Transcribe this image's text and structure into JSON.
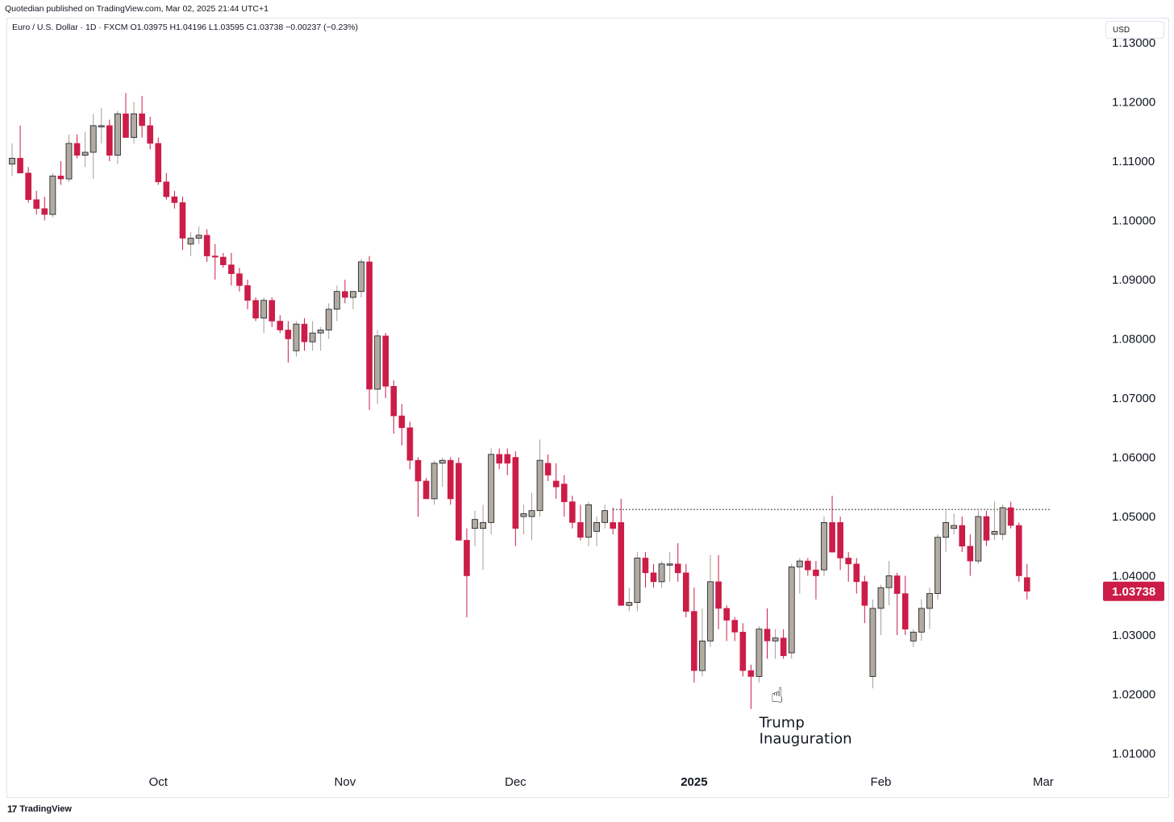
{
  "publisher_line": "Quotedian published on TradingView.com, Mar 02, 2025 21:44 UTC+1",
  "legend_line": "Euro / U.S. Dollar · 1D · FXCM  O1.03975  H1.04196  L1.03595  C1.03738  −0.00237 (−0.23%)",
  "currency_button": "USD",
  "footer_brand": "TradingView",
  "footer_logo": "17",
  "colors": {
    "up": "#b2aba0",
    "up_wick": "#a59e93",
    "down": "#cc1c48",
    "price_tag": "#cc1c48",
    "grid_line": "#e0e3eb"
  },
  "chart_data": {
    "type": "candlestick",
    "symbol": "Euro / U.S. Dollar",
    "timeframe": "1D",
    "source": "FXCM",
    "last_price": 1.03738,
    "last_price_label": "1.03738",
    "ylim": [
      1.0045,
      1.135
    ],
    "y_ticks": [
      1.13,
      1.12,
      1.11,
      1.1,
      1.09,
      1.08,
      1.07,
      1.06,
      1.05,
      1.04,
      1.03,
      1.02,
      1.01
    ],
    "y_tick_labels": [
      "1.13000",
      "1.12000",
      "1.11000",
      "1.10000",
      "1.09000",
      "1.08000",
      "1.07000",
      "1.06000",
      "1.05000",
      "1.04000",
      "1.03000",
      "1.02000",
      "1.01000"
    ],
    "x_labels": [
      {
        "label": "Oct",
        "index": 18,
        "bold": false
      },
      {
        "label": "Nov",
        "index": 41,
        "bold": false
      },
      {
        "label": "Dec",
        "index": 62,
        "bold": false
      },
      {
        "label": "2025",
        "index": 84,
        "bold": true
      },
      {
        "label": "Feb",
        "index": 107,
        "bold": false
      },
      {
        "label": "Mar",
        "index": 127,
        "bold": false
      }
    ],
    "resistance_level": 1.0512,
    "resistance_start_index": 74,
    "resistance_end_index": 128,
    "annotation": {
      "lines": [
        "Trump",
        "Inauguration"
      ],
      "index": 95,
      "price": 1.02
    },
    "candles": [
      [
        1.1095,
        1.113,
        1.1075,
        1.1105
      ],
      [
        1.1105,
        1.116,
        1.108,
        1.108
      ],
      [
        1.108,
        1.109,
        1.103,
        1.1035
      ],
      [
        1.1035,
        1.105,
        1.101,
        1.102
      ],
      [
        1.102,
        1.104,
        1.1,
        1.101
      ],
      [
        1.101,
        1.108,
        1.1005,
        1.1075
      ],
      [
        1.1075,
        1.11,
        1.106,
        1.107
      ],
      [
        1.107,
        1.1145,
        1.1065,
        1.113
      ],
      [
        1.113,
        1.1145,
        1.1105,
        1.111
      ],
      [
        1.111,
        1.115,
        1.109,
        1.1115
      ],
      [
        1.1115,
        1.118,
        1.107,
        1.116
      ],
      [
        1.116,
        1.119,
        1.113,
        1.116
      ],
      [
        1.116,
        1.117,
        1.11,
        1.111
      ],
      [
        1.111,
        1.1185,
        1.1095,
        1.118
      ],
      [
        1.118,
        1.1215,
        1.115,
        1.114
      ],
      [
        1.114,
        1.12,
        1.113,
        1.118
      ],
      [
        1.118,
        1.121,
        1.114,
        1.116
      ],
      [
        1.116,
        1.1175,
        1.112,
        1.113
      ],
      [
        1.113,
        1.114,
        1.106,
        1.1065
      ],
      [
        1.1065,
        1.108,
        1.1035,
        1.104
      ],
      [
        1.104,
        1.105,
        1.102,
        1.103
      ],
      [
        1.103,
        1.104,
        1.095,
        1.097
      ],
      [
        1.096,
        1.098,
        1.094,
        1.097
      ],
      [
        1.097,
        1.099,
        1.096,
        1.0975
      ],
      [
        1.0975,
        1.0985,
        1.093,
        1.094
      ],
      [
        1.094,
        1.096,
        1.09,
        1.0938
      ],
      [
        1.0938,
        1.0945,
        1.092,
        1.0925
      ],
      [
        1.0925,
        1.0945,
        1.089,
        1.091
      ],
      [
        1.091,
        1.092,
        1.088,
        1.089
      ],
      [
        1.089,
        1.09,
        1.085,
        1.0865
      ],
      [
        1.0865,
        1.087,
        1.083,
        1.0835
      ],
      [
        1.0835,
        1.087,
        1.081,
        1.0865
      ],
      [
        1.0865,
        1.087,
        1.082,
        1.083
      ],
      [
        1.083,
        1.084,
        1.081,
        1.0815
      ],
      [
        1.0815,
        1.083,
        1.076,
        1.08
      ],
      [
        1.078,
        1.083,
        1.077,
        1.0825
      ],
      [
        1.0825,
        1.0835,
        1.078,
        1.0795
      ],
      [
        1.0795,
        1.083,
        1.078,
        1.081
      ],
      [
        1.081,
        1.082,
        1.078,
        1.0815
      ],
      [
        1.0815,
        1.086,
        1.08,
        1.085
      ],
      [
        1.085,
        1.089,
        1.083,
        1.088
      ],
      [
        1.088,
        1.09,
        1.086,
        1.087
      ],
      [
        1.087,
        1.088,
        1.085,
        1.088
      ],
      [
        1.088,
        1.0935,
        1.087,
        1.093
      ],
      [
        1.093,
        1.094,
        1.068,
        1.0715
      ],
      [
        1.0715,
        1.0815,
        1.069,
        1.0805
      ],
      [
        1.0805,
        1.081,
        1.07,
        1.072
      ],
      [
        1.072,
        1.073,
        1.064,
        1.067
      ],
      [
        1.067,
        1.069,
        1.062,
        1.065
      ],
      [
        1.065,
        1.066,
        1.058,
        1.0595
      ],
      [
        1.0595,
        1.06,
        1.05,
        1.056
      ],
      [
        1.056,
        1.0565,
        1.053,
        1.053
      ],
      [
        1.053,
        1.0595,
        1.052,
        1.059
      ],
      [
        1.059,
        1.06,
        1.055,
        1.0595
      ],
      [
        1.0595,
        1.06,
        1.052,
        1.053
      ],
      [
        1.059,
        1.06,
        1.046,
        1.046
      ],
      [
        1.046,
        1.048,
        1.033,
        1.04
      ],
      [
        1.048,
        1.051,
        1.045,
        1.0495
      ],
      [
        1.048,
        1.052,
        1.041,
        1.049
      ],
      [
        1.049,
        1.0615,
        1.047,
        1.0605
      ],
      [
        1.0605,
        1.0615,
        1.058,
        1.059
      ],
      [
        1.0605,
        1.0615,
        1.057,
        1.059
      ],
      [
        1.06,
        1.061,
        1.045,
        1.048
      ],
      [
        1.05,
        1.052,
        1.047,
        1.0505
      ],
      [
        1.05,
        1.054,
        1.046,
        1.051
      ],
      [
        1.051,
        1.063,
        1.05,
        1.0595
      ],
      [
        1.059,
        1.0605,
        1.056,
        1.057
      ],
      [
        1.056,
        1.059,
        1.053,
        1.055
      ],
      [
        1.0555,
        1.057,
        1.05,
        1.0525
      ],
      [
        1.0525,
        1.0535,
        1.048,
        1.049
      ],
      [
        1.049,
        1.052,
        1.046,
        1.0465
      ],
      [
        1.0465,
        1.0525,
        1.045,
        1.052
      ],
      [
        1.0475,
        1.05,
        1.045,
        1.049
      ],
      [
        1.049,
        1.052,
        1.048,
        1.051
      ],
      [
        1.049,
        1.0515,
        1.047,
        1.048
      ],
      [
        1.049,
        1.053,
        1.035,
        1.035
      ],
      [
        1.035,
        1.038,
        1.034,
        1.0355
      ],
      [
        1.0355,
        1.044,
        1.034,
        1.043
      ],
      [
        1.043,
        1.044,
        1.038,
        1.0405
      ],
      [
        1.0405,
        1.042,
        1.038,
        1.039
      ],
      [
        1.039,
        1.0425,
        1.038,
        1.042
      ],
      [
        1.042,
        1.044,
        1.039,
        1.042
      ],
      [
        1.042,
        1.0455,
        1.039,
        1.0405
      ],
      [
        1.0405,
        1.042,
        1.033,
        1.034
      ],
      [
        1.034,
        1.038,
        1.022,
        1.024
      ],
      [
        1.024,
        1.0345,
        1.023,
        1.029
      ],
      [
        1.029,
        1.0435,
        1.028,
        1.039
      ],
      [
        1.039,
        1.0435,
        1.031,
        1.0345
      ],
      [
        1.0345,
        1.035,
        1.029,
        1.0325
      ],
      [
        1.0325,
        1.033,
        1.029,
        1.0305
      ],
      [
        1.0305,
        1.032,
        1.023,
        1.024
      ],
      [
        1.024,
        1.025,
        1.0175,
        1.023
      ],
      [
        1.023,
        1.0315,
        1.022,
        1.031
      ],
      [
        1.031,
        1.0345,
        1.026,
        1.029
      ],
      [
        1.029,
        1.031,
        1.026,
        1.0295
      ],
      [
        1.0295,
        1.031,
        1.026,
        1.0265
      ],
      [
        1.027,
        1.042,
        1.026,
        1.0415
      ],
      [
        1.0415,
        1.043,
        1.037,
        1.0425
      ],
      [
        1.0425,
        1.043,
        1.04,
        1.041
      ],
      [
        1.041,
        1.0425,
        1.036,
        1.04
      ],
      [
        1.041,
        1.05,
        1.04,
        1.049
      ],
      [
        1.049,
        1.0535,
        1.044,
        1.044
      ],
      [
        1.049,
        1.05,
        1.041,
        1.043
      ],
      [
        1.043,
        1.044,
        1.039,
        1.042
      ],
      [
        1.042,
        1.043,
        1.037,
        1.039
      ],
      [
        1.039,
        1.04,
        1.032,
        1.035
      ],
      [
        1.023,
        1.036,
        1.021,
        1.0345
      ],
      [
        1.0345,
        1.0385,
        1.03,
        1.038
      ],
      [
        1.038,
        1.0425,
        1.035,
        1.04
      ],
      [
        1.04,
        1.0405,
        1.03,
        1.037
      ],
      [
        1.037,
        1.04,
        1.03,
        1.031
      ],
      [
        1.029,
        1.031,
        1.028,
        1.0305
      ],
      [
        1.0305,
        1.036,
        1.029,
        1.0345
      ],
      [
        1.0345,
        1.038,
        1.031,
        1.037
      ],
      [
        1.037,
        1.047,
        1.036,
        1.0465
      ],
      [
        1.0465,
        1.051,
        1.044,
        1.049
      ],
      [
        1.048,
        1.0505,
        1.047,
        1.0485
      ],
      [
        1.0485,
        1.05,
        1.044,
        1.045
      ],
      [
        1.045,
        1.047,
        1.04,
        1.0425
      ],
      [
        1.0425,
        1.051,
        1.042,
        1.05
      ],
      [
        1.05,
        1.051,
        1.045,
        1.046
      ],
      [
        1.047,
        1.0525,
        1.046,
        1.0475
      ],
      [
        1.047,
        1.052,
        1.046,
        1.0515
      ],
      [
        1.0515,
        1.0525,
        1.048,
        1.0485
      ],
      [
        1.0485,
        1.049,
        1.039,
        1.04
      ],
      [
        1.0397,
        1.042,
        1.036,
        1.0374
      ]
    ]
  }
}
